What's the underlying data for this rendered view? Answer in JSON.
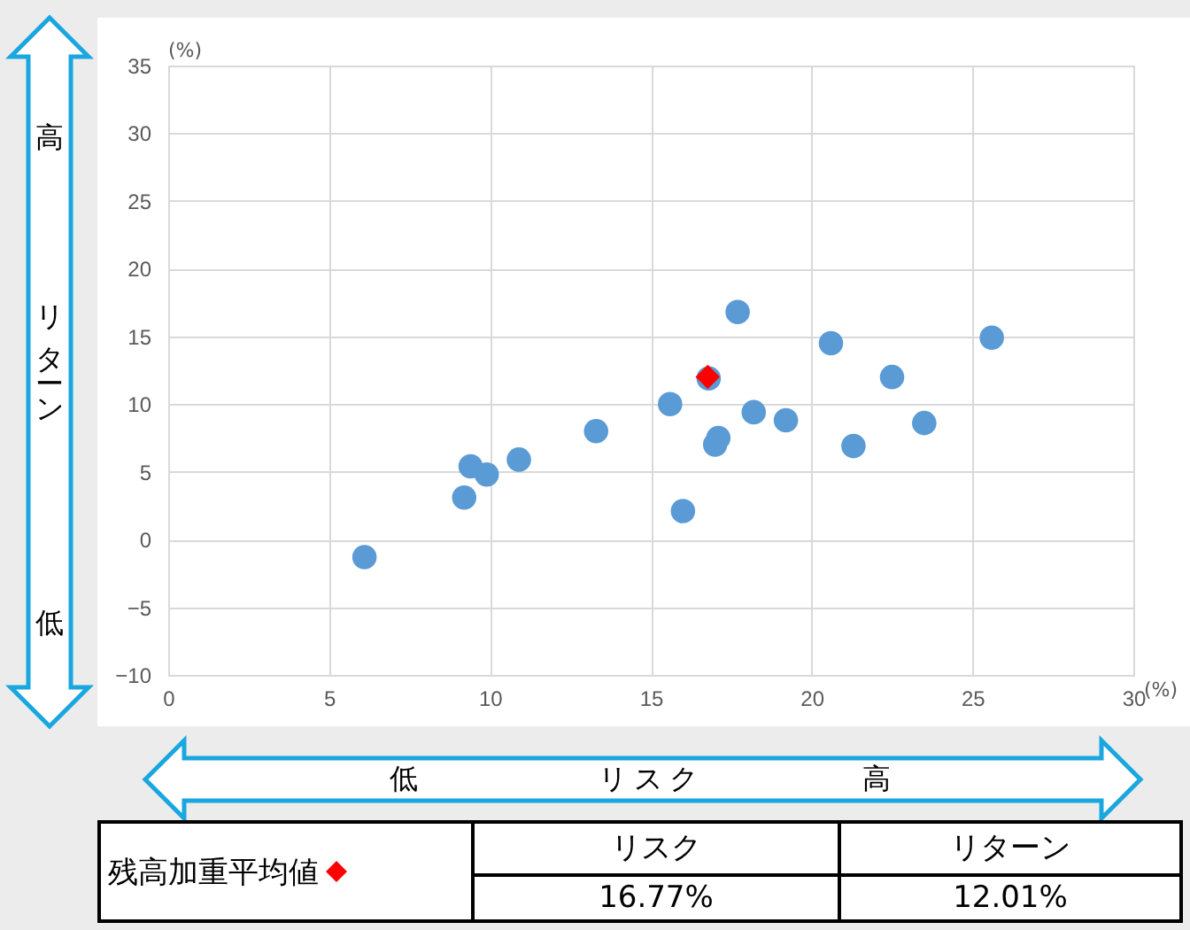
{
  "chart_data": {
    "type": "scatter",
    "xlabel": "リスク",
    "ylabel": "リターン",
    "series": [
      {
        "color": "#5b9bd5",
        "marker": "circle",
        "x": [
          6.1,
          9.2,
          9.4,
          9.9,
          10.9,
          13.3,
          15.6,
          16.0,
          16.8,
          17.1,
          17.0,
          17.7,
          18.2,
          19.2,
          20.6,
          21.3,
          22.5,
          23.5,
          25.6
        ],
        "values": [
          -1.3,
          3.1,
          5.4,
          4.8,
          5.9,
          8.0,
          10.0,
          2.1,
          11.9,
          7.5,
          7.0,
          16.8,
          9.4,
          8.8,
          14.5,
          6.9,
          12.0,
          8.6,
          14.9
        ]
      },
      {
        "color": "#ff0000",
        "marker": "diamond",
        "x": [
          16.77
        ],
        "values": [
          12.01
        ]
      }
    ],
    "xlim": [
      0,
      30
    ],
    "xticks": [
      0,
      5,
      10,
      15,
      20,
      25,
      30
    ],
    "ylim": [
      -10,
      35
    ],
    "yticks": [
      -10,
      -5,
      0,
      5,
      10,
      15,
      20,
      25,
      30,
      35
    ],
    "grid": true,
    "annotations": [
      "(%)",
      "(%)",
      "高",
      "低",
      "低",
      "高",
      "残高加重平均値",
      "リスク",
      "リターン",
      "16.77%",
      "12.01%"
    ]
  }
}
